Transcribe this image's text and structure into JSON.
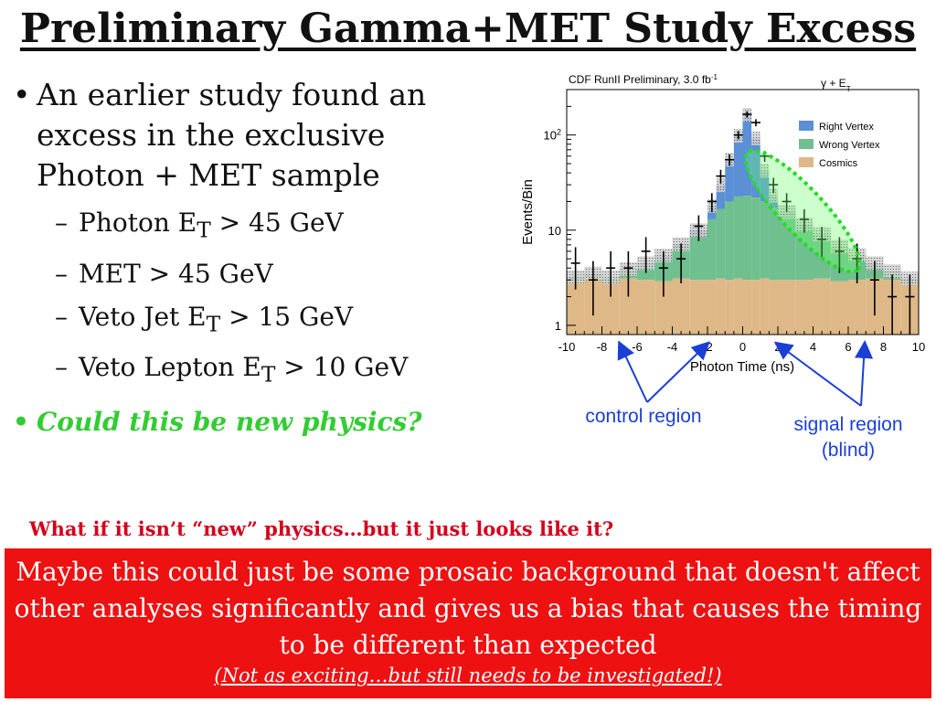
{
  "slide": {
    "title": "Preliminary Gamma+MET Study Excess",
    "bullet_1": "An earlier study found an excess in the exclusive Photon + MET sample",
    "sub_bullets": [
      {
        "pre": "Photon E",
        "subscript": "T",
        "post": " > 45 GeV"
      },
      {
        "pre": "MET > 45 GeV",
        "subscript": "",
        "post": ""
      },
      {
        "pre": "Veto Jet E",
        "subscript": "T",
        "post": " > 15 GeV"
      },
      {
        "pre": "Veto Lepton E",
        "subscript": "T",
        "post": " > 10 GeV"
      }
    ],
    "bullet_2": "Could this be new physics?",
    "question": "What if it isn’t “new” physics…but it just looks like it?",
    "red_box_text": "Maybe this could just be some prosaic background that doesn't affect other analyses significantly and gives us a bias that causes the timing to be different than expected",
    "red_box_note": "(Not as exciting…but still needs to be investigated!)"
  },
  "colors": {
    "right_vertex": "#5b8fd6",
    "wrong_vertex": "#6fbf8f",
    "cosmics": "#deb887",
    "highlight": "#33dd33",
    "annotation": "#1a3fd6",
    "red_box": "#ee1111",
    "question": "#d4001a"
  },
  "chart_data": {
    "type": "bar",
    "title": "CDF RunII Preliminary, 3.0 fb",
    "title_superscript": "-1",
    "channel_label": "γ + E",
    "channel_subscript": "T",
    "xlabel": "Photon Time (ns)",
    "ylabel": "Events/Bin",
    "xlim": [
      -10,
      10
    ],
    "ylim": [
      0.8,
      300
    ],
    "y_log": true,
    "x_ticks": [
      "-10",
      "-8",
      "-6",
      "-4",
      "-2",
      "0",
      "2",
      "4",
      "6",
      "8",
      "10"
    ],
    "y_ticks": [
      {
        "value": 1,
        "label": "1"
      },
      {
        "value": 10,
        "label": "10"
      },
      {
        "value": 100,
        "label": "10",
        "sup": "2"
      }
    ],
    "legend": [
      "Right Vertex",
      "Wrong Vertex",
      "Cosmics"
    ],
    "legend_position": "top-right",
    "bin_edges": [
      -10,
      -9,
      -8,
      -7,
      -6,
      -5,
      -4,
      -3,
      -2,
      -1.5,
      -1,
      -0.5,
      0,
      0.5,
      1,
      1.5,
      2,
      3,
      4,
      5,
      6,
      7,
      8,
      9,
      10
    ],
    "cosmics": [
      3.0,
      3.2,
      2.8,
      3.1,
      3.0,
      2.9,
      3.1,
      3.0,
      3.0,
      3.1,
      3.0,
      3.1,
      3.0,
      3.0,
      3.1,
      3.0,
      3.0,
      3.0,
      3.1,
      2.9,
      3.0,
      3.1,
      3.0,
      2.8
    ],
    "wrong_vertex": [
      0.2,
      0.3,
      0.4,
      0.8,
      1.4,
      2.3,
      3.6,
      5.8,
      10.0,
      13.5,
      17.0,
      19.5,
      20.0,
      19.0,
      17.0,
      14.0,
      11.0,
      8.0,
      5.8,
      3.8,
      2.5,
      1.4,
      0.7,
      0.3
    ],
    "right_vertex": [
      0.0,
      0.0,
      0.0,
      0.0,
      0.1,
      0.2,
      0.4,
      1.2,
      5.0,
      13.0,
      35.0,
      75.0,
      140.0,
      70.0,
      22.0,
      6.0,
      1.5,
      0.4,
      0.1,
      0.0,
      0.0,
      0.0,
      0.0,
      0.0
    ],
    "data": [
      {
        "x": -9.5,
        "y": 4.5
      },
      {
        "x": -8.5,
        "y": 3.0
      },
      {
        "x": -7.5,
        "y": 4.0
      },
      {
        "x": -6.5,
        "y": 4.0
      },
      {
        "x": -5.5,
        "y": 6.0
      },
      {
        "x": -4.5,
        "y": 4.0
      },
      {
        "x": -3.5,
        "y": 5.0
      },
      {
        "x": -2.5,
        "y": 11.0
      },
      {
        "x": -1.75,
        "y": 20.0
      },
      {
        "x": -1.25,
        "y": 37.0
      },
      {
        "x": -0.75,
        "y": 55.0
      },
      {
        "x": -0.25,
        "y": 100.0
      },
      {
        "x": 0.25,
        "y": 165.0
      },
      {
        "x": 0.75,
        "y": 135.0
      },
      {
        "x": 1.25,
        "y": 60.0
      },
      {
        "x": 1.75,
        "y": 30.0
      },
      {
        "x": 2.5,
        "y": 20.0
      },
      {
        "x": 3.5,
        "y": 13.0
      },
      {
        "x": 4.5,
        "y": 8.0
      },
      {
        "x": 5.5,
        "y": 6.0
      },
      {
        "x": 6.5,
        "y": 5.0
      },
      {
        "x": 7.5,
        "y": 3.0
      },
      {
        "x": 8.5,
        "y": 2.0
      },
      {
        "x": 9.5,
        "y": 2.0
      }
    ],
    "annotations": [
      "control region",
      "signal region (blind)"
    ]
  }
}
